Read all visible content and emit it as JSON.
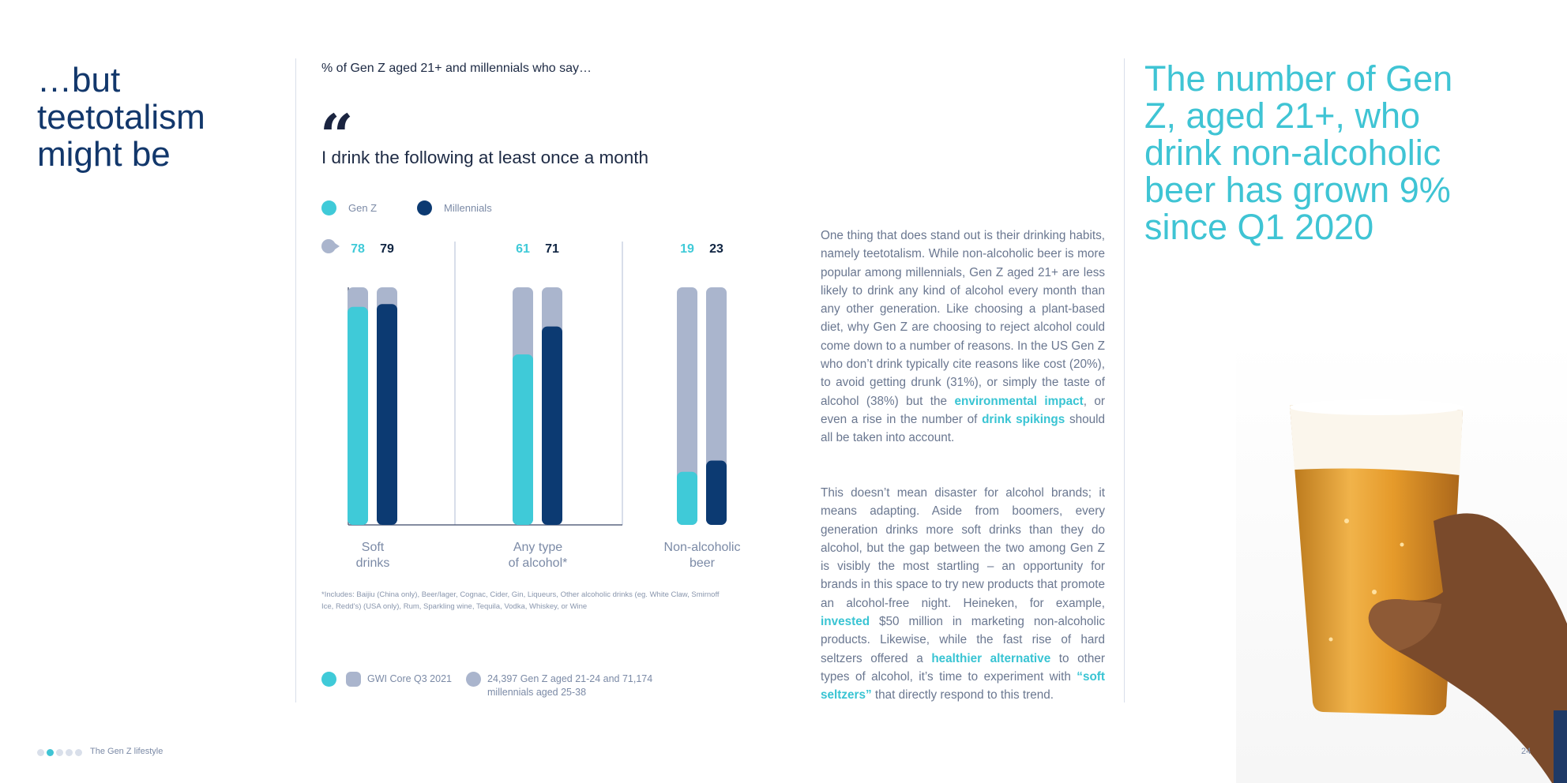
{
  "page": {
    "headline": "…but teetotalism might be",
    "footer_label": "The Gen Z lifestyle",
    "page_number": "24",
    "footer_dots": 5,
    "footer_active_dot": 1
  },
  "chart_intro": "% of Gen Z aged 21+ and millennials who say…",
  "quote_mark": "“",
  "quote_text": "I drink the following at least once a month",
  "legend": {
    "genz": "Gen Z",
    "millennials": "Millennials"
  },
  "colors": {
    "genz": "#3fcad8",
    "millennials": "#0c3a72",
    "track": "#aab5cd",
    "accent": "#39c4d3",
    "headline": "#12376b"
  },
  "chart_data": {
    "type": "bar",
    "title": "I drink the following at least once a month",
    "categories": [
      "Soft drinks",
      "Any type of alcohol*",
      "Non-alcoholic beer"
    ],
    "category_lines": [
      [
        "Soft",
        "drinks"
      ],
      [
        "Any type",
        "of alcohol*"
      ],
      [
        "Non-alcoholic",
        "beer"
      ]
    ],
    "series": [
      {
        "name": "Gen Z",
        "values": [
          78,
          61,
          19
        ]
      },
      {
        "name": "Millennials",
        "values": [
          79,
          71,
          23
        ]
      }
    ],
    "ylim": [
      0,
      85
    ],
    "xlabel": "",
    "ylabel": "%"
  },
  "footnote": "*Includes: Baijiu (China only), Beer/lager, Cognac, Cider, Gin, Liqueurs, Other alcoholic drinks (eg. White Claw, Smirnoff Ice, Redd's) (USA only), Rum, Sparkling wine, Tequila, Vodka, Whiskey, or Wine",
  "source": {
    "question_icon": "info-icon",
    "dataset": "GWI Core Q3 2021",
    "sample_line1": "24,397 Gen Z aged 21-24 and 71,174",
    "sample_line2": "millennials aged 25-38"
  },
  "body": {
    "p1": [
      {
        "t": "One thing that does stand out is their drinking habits, namely teetotalism. While non-alcoholic beer is more popular among millennials, Gen Z aged 21+ are less likely to drink any kind of alcohol every month than any other generation. Like choosing a plant-based diet, why Gen Z are choosing to reject alcohol could come down to a number of reasons. In the US Gen Z who don’t drink typically cite reasons like cost (20%), to avoid getting drunk (31%), or simply the taste of alcohol (38%) but the ",
        "h": false
      },
      {
        "t": "environmental impact",
        "h": true
      },
      {
        "t": ", or even a rise in the number of ",
        "h": false
      },
      {
        "t": "drink spikings",
        "h": true
      },
      {
        "t": " should all be taken into account.",
        "h": false
      }
    ],
    "p2": [
      {
        "t": "This doesn’t mean disaster for alcohol brands; it means adapting. Aside from boomers, every generation drinks more soft drinks than they do alcohol, but the gap between the two among Gen Z is visibly the most startling – an opportunity for brands in this space to try new products that promote an alcohol-free night. Heineken, for example, ",
        "h": false
      },
      {
        "t": "invested",
        "h": true
      },
      {
        "t": " $50 million in marketing non-alcoholic products. Likewise, while the fast rise of hard seltzers offered a ",
        "h": false
      },
      {
        "t": "healthier alternative",
        "h": true
      },
      {
        "t": " to other types of alcohol, it’s time to experiment with ",
        "h": false
      },
      {
        "t": "“soft seltzers”",
        "h": true
      },
      {
        "t": " that directly respond to this trend.",
        "h": false
      }
    ]
  },
  "stat_callout": "The number of Gen Z, aged 21+, who drink non-alcoholic beer has grown 9% since Q1 2020"
}
